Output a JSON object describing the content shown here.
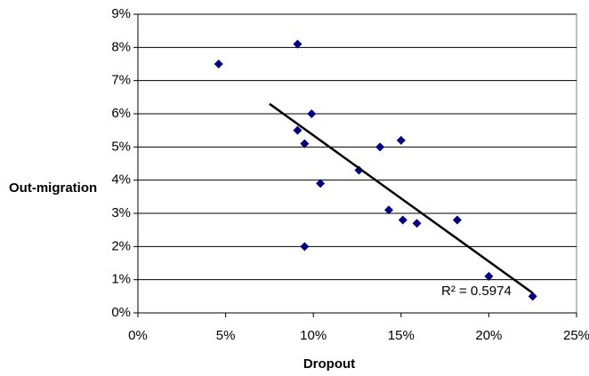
{
  "chart_data": {
    "type": "scatter",
    "x_label": "Dropout",
    "y_label": "Out-migration",
    "color": "#000080",
    "grid": true,
    "x": [
      4.6,
      9.1,
      9.1,
      9.9,
      9.5,
      9.5,
      10.4,
      12.6,
      13.8,
      15.0,
      14.3,
      15.1,
      15.9,
      18.2,
      20.0,
      22.5
    ],
    "values": [
      7.5,
      8.1,
      5.5,
      6.0,
      5.1,
      2.0,
      3.9,
      4.3,
      5.0,
      5.2,
      3.1,
      2.8,
      2.7,
      2.8,
      1.1,
      0.5
    ],
    "xlim": [
      0,
      25
    ],
    "ylim": [
      0,
      9
    ],
    "xticks": [
      {
        "value": 0,
        "label": "0%"
      },
      {
        "value": 5,
        "label": "5%"
      },
      {
        "value": 10,
        "label": "10%"
      },
      {
        "value": 15,
        "label": "15%"
      },
      {
        "value": 20,
        "label": "20%"
      },
      {
        "value": 25,
        "label": "25%"
      }
    ],
    "yticks": [
      {
        "value": 0,
        "label": "0%"
      },
      {
        "value": 1,
        "label": "1%"
      },
      {
        "value": 2,
        "label": "2%"
      },
      {
        "value": 3,
        "label": "3%"
      },
      {
        "value": 4,
        "label": "4%"
      },
      {
        "value": 5,
        "label": "5%"
      },
      {
        "value": 6,
        "label": "6%"
      },
      {
        "value": 7,
        "label": "7%"
      },
      {
        "value": 8,
        "label": "8%"
      },
      {
        "value": 9,
        "label": "9%"
      }
    ],
    "trendline": {
      "x": [
        7.5,
        22.5
      ],
      "values": [
        6.3,
        0.6
      ],
      "label": "R² = 0.5974",
      "color": "#000000"
    }
  }
}
